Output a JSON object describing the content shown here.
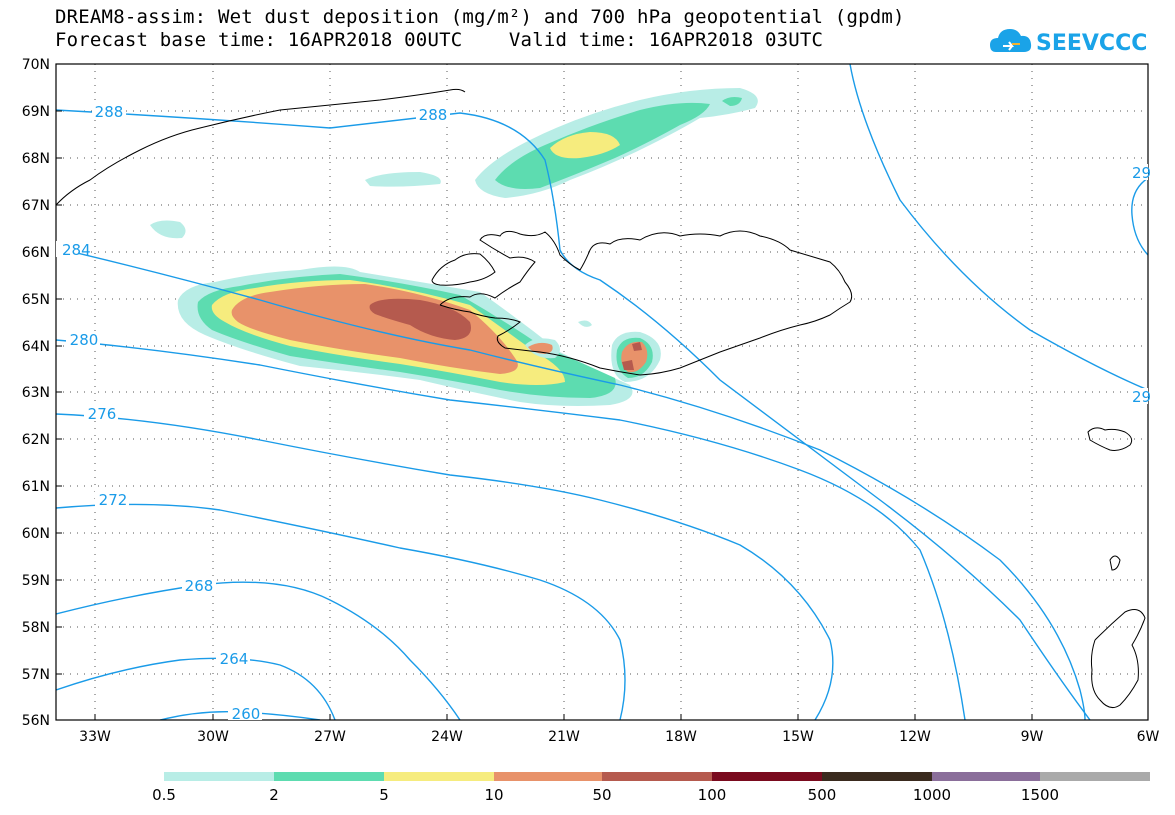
{
  "title": {
    "line1": "DREAM8-assim: Wet dust deposition (mg/m²) and 700 hPa geopotential (gpdm)",
    "line2": "Forecast base time: 16APR2018 00UTC    Valid time: 16APR2018 03UTC"
  },
  "logo": {
    "text": "SEEVCCC",
    "icon": "cloud-icon",
    "color": "#1aa3e8"
  },
  "map": {
    "lat_labels": [
      "70N",
      "69N",
      "68N",
      "67N",
      "66N",
      "65N",
      "64N",
      "63N",
      "62N",
      "61N",
      "60N",
      "59N",
      "58N",
      "57N",
      "56N"
    ],
    "lon_labels": [
      "33W",
      "30W",
      "27W",
      "24W",
      "21W",
      "18W",
      "15W",
      "12W",
      "9W",
      "6W"
    ],
    "contour_color": "#1a9be8",
    "contour_labels": [
      "288",
      "288",
      "284",
      "280",
      "276",
      "272",
      "268",
      "264",
      "260",
      "29",
      "29"
    ],
    "coast_color": "#000000"
  },
  "legend": {
    "colors": [
      "#b8ede6",
      "#5ddcb0",
      "#f6ec7e",
      "#e8926a",
      "#b55a4e",
      "#7a0a1e",
      "#3a2a1e",
      "#8a6e9a",
      "#aaaaaa"
    ],
    "labels": [
      "0.5",
      "2",
      "5",
      "10",
      "50",
      "100",
      "500",
      "1000",
      "1500"
    ]
  }
}
